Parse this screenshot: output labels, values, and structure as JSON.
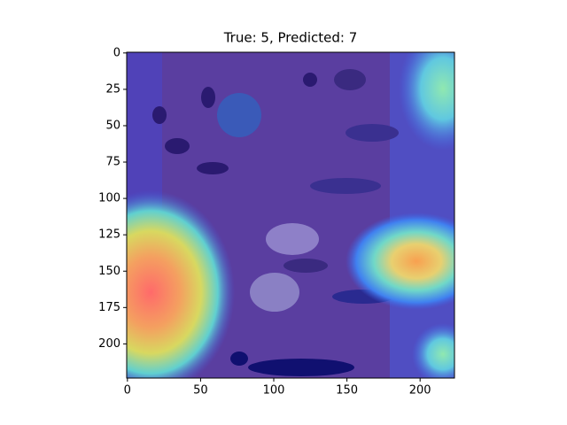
{
  "chart_data": {
    "type": "image",
    "title": "True: 5, Predicted: 7",
    "xlim": [
      -0.5,
      223.5
    ],
    "ylim": [
      223.5,
      -0.5
    ],
    "xticks": [
      0,
      50,
      100,
      150,
      200
    ],
    "yticks": [
      0,
      25,
      50,
      75,
      100,
      125,
      150,
      175,
      200
    ]
  }
}
